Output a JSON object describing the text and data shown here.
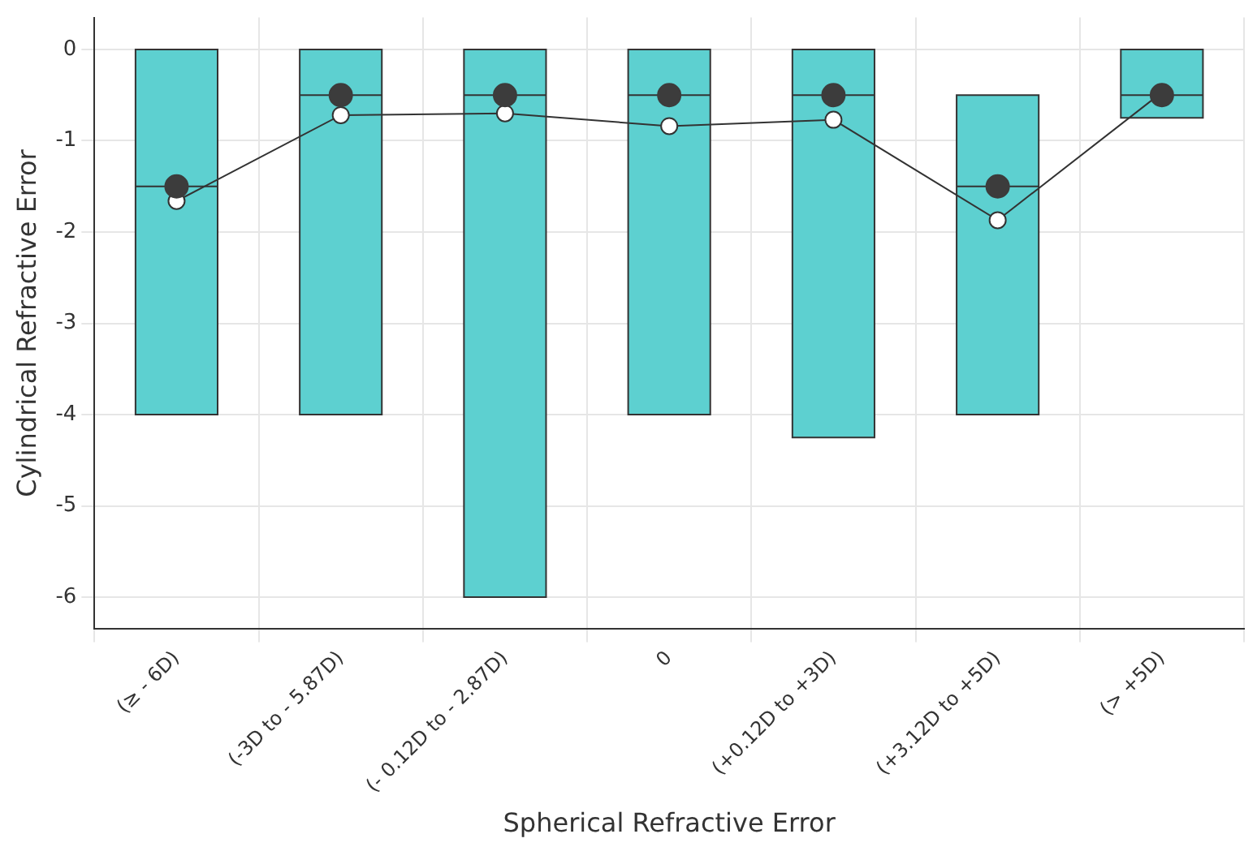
{
  "chart_data": {
    "type": "box",
    "xlabel": "Spherical Refractive Error",
    "ylabel": "Cylindrical Refractive Error",
    "categories": [
      "(≥ - 6D)",
      "(-3D to - 5.87D)",
      "(- 0.12D to - 2.87D)",
      "0",
      "(+0.12D to +3D)",
      "(+3.12D to +5D)",
      "(> +5D)"
    ],
    "boxes": [
      {
        "low": -4,
        "q1": -4,
        "median": -1.5,
        "q3": 0,
        "high": 0
      },
      {
        "low": -4,
        "q1": -4,
        "median": -0.5,
        "q3": 0,
        "high": 0
      },
      {
        "low": -6,
        "q1": -6,
        "median": -0.5,
        "q3": 0,
        "high": 0
      },
      {
        "low": -4,
        "q1": -4,
        "median": -0.5,
        "q3": 0,
        "high": 0
      },
      {
        "low": -4.25,
        "q1": -4.25,
        "median": -0.5,
        "q3": 0,
        "high": 0
      },
      {
        "low": -4,
        "q1": -4,
        "median": -1.5,
        "q3": -0.5,
        "high": -0.5
      },
      {
        "low": -0.75,
        "q1": -0.75,
        "median": -0.5,
        "q3": 0,
        "high": 0
      }
    ],
    "color": "#5dd0d0",
    "series": [
      {
        "type": "scatter",
        "color": "#3c3c3c",
        "marker": "circle",
        "values": [
          -1.5,
          -0.5,
          -0.5,
          -0.5,
          -0.5,
          -1.5,
          -0.5
        ]
      },
      {
        "type": "line",
        "color": "#333333",
        "marker": "circle",
        "values": [
          -1.66,
          -0.72,
          -0.7,
          -0.84,
          -0.77,
          -1.87,
          -0.47
        ]
      }
    ],
    "ylim": [
      -6.35,
      0.35
    ],
    "yticks": [
      -6,
      -5,
      -4,
      -3,
      -2,
      -1,
      0
    ],
    "grid": true,
    "legend": false
  }
}
